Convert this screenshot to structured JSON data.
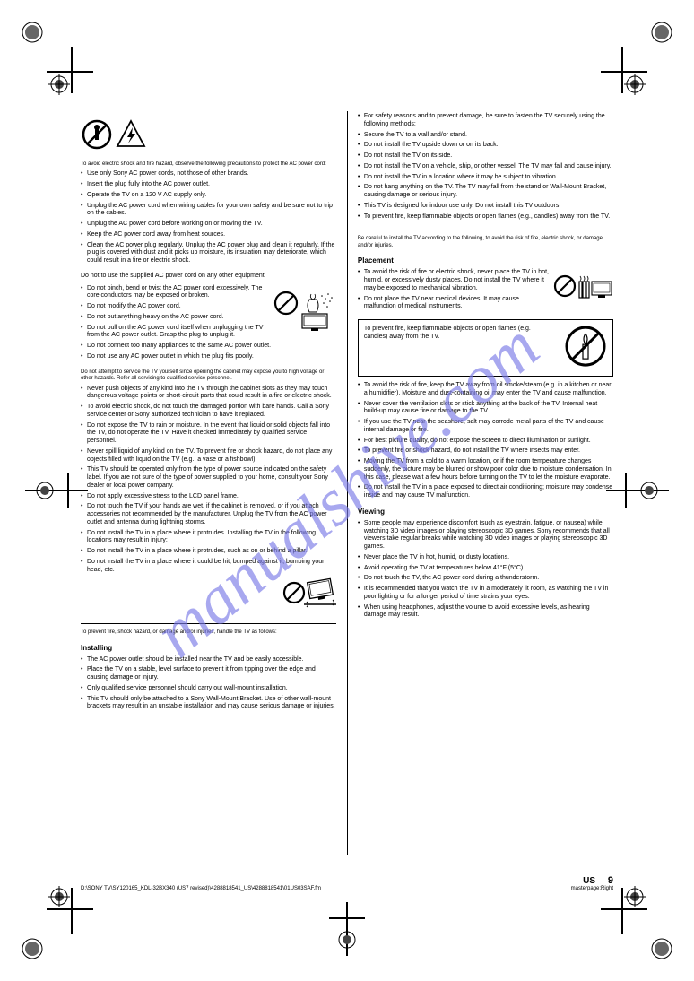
{
  "watermark": "manualshive.com",
  "pageNumber": "9",
  "footerLeft": "D:\\SONY TV\\SY120165_KDL-32BX340 (US7 revised)\\4288818541_US\\4288818541\\01US03SAF.fm",
  "footerRight": "masterpage:Right",
  "footerLang": "US",
  "footerDate": "KDL-32BX340\r\n4-288-818-54(1)",
  "icons": {
    "prohibit_stroke": "#000000",
    "prohibit_fill": "#ffffff",
    "voltage_stroke": "#000000"
  },
  "left": {
    "sec1": {
      "title": "To avoid electric shock and fire hazard, observe the following precautions to protect the AC power cord:",
      "items": [
        "Use only Sony AC power cords, not those of other brands.",
        "Insert the plug fully into the AC power outlet.",
        "Operate the TV on a 120 V AC supply only.",
        "Unplug the AC power cord when wiring cables for your own safety and be sure not to trip on the cables.",
        "Unplug the AC power cord before working on or moving the TV.",
        "Keep the AC power cord away from heat sources.",
        "Clean the AC power plug regularly. Unplug the AC power plug and clean it regularly. If the plug is covered with dust and it picks up moisture, its insulation may deteriorate, which could result in a fire or electric shock."
      ]
    },
    "sec2": {
      "title": "Do not to use the supplied AC power cord on any other equipment.",
      "items": [
        "Do not pinch, bend or twist the AC power cord excessively. The core conductors may be exposed or broken.",
        "Do not modify the AC power cord.",
        "Do not put anything heavy on the AC power cord.",
        "Do not pull on the AC power cord itself when unplugging the TV from the AC power outlet. Grasp the plug to unplug it.",
        "Do not connect too many appliances to the same AC power outlet.",
        "Do not use any AC power outlet in which the plug fits poorly."
      ]
    },
    "sec3": {
      "head": "Do not attempt to service the TV yourself since opening the cabinet may expose you to high voltage or other hazards. Refer all servicing to qualified service personnel.",
      "items": [
        "Never push objects of any kind into the TV through the cabinet slots as they may touch dangerous voltage points or short-circuit parts that could result in a fire or electric shock.",
        "To avoid electric shock, do not touch the damaged portion with bare hands. Call a Sony service center or Sony authorized technician to have it replaced.",
        "Do not expose the TV to rain or moisture. In the event that liquid or solid objects fall into the TV, do not operate the TV. Have it checked immediately by qualified service personnel.",
        "Never spill liquid of any kind on the TV. To prevent fire or shock hazard, do not place any objects filled with liquid on the TV (e.g., a vase or a fishbowl).",
        "This TV should be operated only from the type of power source indicated on the safety label. If you are not sure of the type of power supplied to your home, consult your Sony dealer or local power company.",
        "Do not apply excessive stress to the LCD panel frame.",
        "Do not touch the TV if your hands are wet, if the cabinet is removed, or if you attach accessories not recommended by the manufacturer. Unplug the TV from the AC power outlet and antenna during lightning storms.",
        "Do not install the TV in a place where it protrudes. Installing the TV in the following locations may result in injury:",
        "Do not install the TV in a place where it protrudes, such as on or behind a pillar.",
        "Do not install the TV in a place where it could be hit, bumped against it, bumping your head, etc."
      ]
    },
    "sec4": {
      "head": "To prevent fire, shock hazard, or damage and/or injuries, handle the TV as follows:",
      "installHead": "Installing",
      "items": [
        "The AC power outlet should be installed near the TV and be easily accessible.",
        "Place the TV on a stable, level surface to prevent it from tipping over the edge and causing damage or injury.",
        "Only qualified service personnel should carry out wall-mount installation.",
        "This TV should only be attached to a Sony Wall-Mount Bracket. Use of other wall-mount brackets may result in an unstable installation and may cause serious damage or injuries."
      ]
    }
  },
  "right": {
    "sec1": {
      "items": [
        "For safety reasons and to prevent damage, be sure to fasten the TV securely using the following methods:",
        "Secure the TV to a wall and/or stand.",
        "Do not install the TV upside down or on its back.",
        "Do not install the TV on its side.",
        "Do not install the TV on a vehicle, ship, or other vessel. The TV may fall and cause injury.",
        "Do not install the TV in a location where it may be subject to vibration.",
        "Do not hang anything on the TV. The TV may fall from the stand or Wall-Mount Bracket, causing damage or serious injury.",
        "This TV is designed for indoor use only. Do not install this TV outdoors.",
        "To prevent fire, keep flammable objects or open flames (e.g., candles) away from the TV."
      ]
    },
    "hrAfter": true,
    "sec2": {
      "head": "Be careful to install the TV according to the following, to avoid the risk of fire, electric shock, or damage and/or injuries.",
      "placeHead": "Placement",
      "items": [
        "To avoid the risk of fire or electric shock, never place the TV in hot, humid, or excessively dusty places. Do not install the TV where it may be exposed to mechanical vibration.",
        "Do not place the TV near medical devices. It may cause malfunction of medical instruments."
      ],
      "candleWarn": "To prevent fire, keep flammable objects or open flames (e.g. candles) away from the TV.",
      "items2": [
        "To avoid the risk of fire, keep the TV away from oil smoke/steam (e.g. in a kitchen or near a humidifier). Moisture and dust-containing oil may enter the TV and cause malfunction.",
        "Never cover the ventilation slots or stick anything at the back of the TV. Internal heat build-up may cause fire or damage to the TV.",
        "If you use the TV near the seashore, salt may corrode metal parts of the TV and cause internal damage or fire.",
        "For best picture quality, do not expose the screen to direct illumination or sunlight.",
        "To prevent fire or shock hazard, do not install the TV where insects may enter.",
        "Moving the TV from a cold to a warm location, or if the room temperature changes suddenly, the picture may be blurred or show poor color due to moisture condensation. In this case, please wait a few hours before turning on the TV to let the moisture evaporate.",
        "Do not install the TV in a place exposed to direct air conditioning; moisture may condense inside and may cause TV malfunction."
      ],
      "viewHead": "Viewing",
      "viewItems": [
        "Some people may experience discomfort (such as eyestrain, fatigue, or nausea) while watching 3D video images or playing stereoscopic 3D games. Sony recommends that all viewers take regular breaks while watching 3D video images or playing stereoscopic 3D games.",
        "Never place the TV in hot, humid, or dusty locations.",
        "Avoid operating the TV at temperatures below 41°F (5°C).",
        "Do not touch the TV, the AC power cord during a thunderstorm.",
        "It is recommended that you watch the TV in a moderately lit room, as watching the TV in poor lighting or for a longer period of time strains your eyes.",
        "When using headphones, adjust the volume to avoid excessive levels, as hearing damage may result."
      ]
    }
  }
}
